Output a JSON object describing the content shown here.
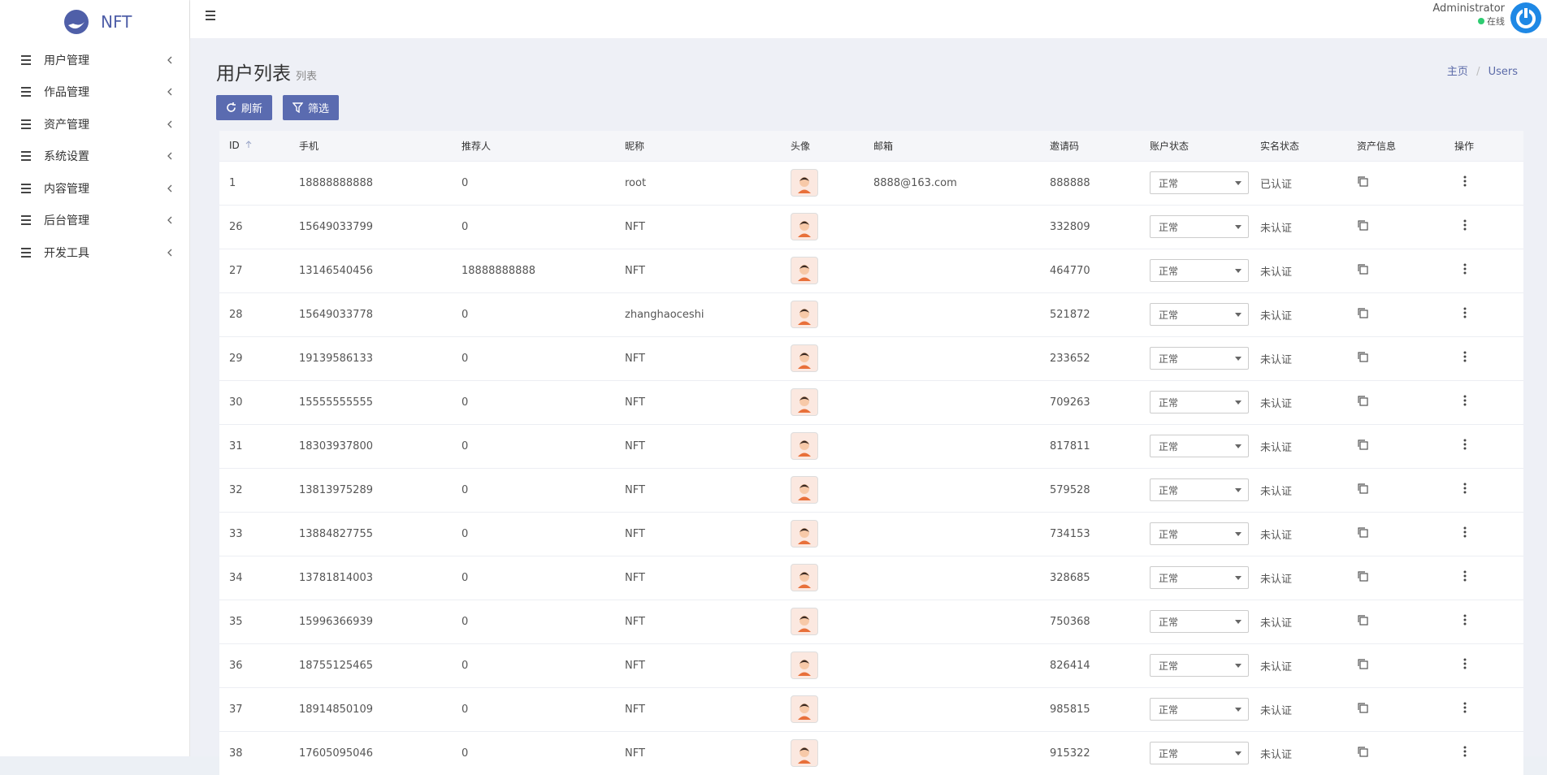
{
  "sidebar": {
    "logo": "NFT",
    "menu": [
      "用户管理",
      "作品管理",
      "资产管理",
      "系统设置",
      "内容管理",
      "后台管理",
      "开发工具"
    ]
  },
  "header": {
    "user": "Administrator",
    "status": "在线"
  },
  "page": {
    "title": "用户列表",
    "subtitle": "列表",
    "breadcrumb": [
      "主页",
      "Users"
    ]
  },
  "toolbar": [
    "刷新",
    "筛选"
  ],
  "table": {
    "columns": [
      "ID",
      "手机",
      "推荐人",
      "昵称",
      "头像",
      "邮箱",
      "邀请码",
      "账户状态",
      "实名状态",
      "资产信息",
      "操作"
    ],
    "rows": [
      {
        "id": "1",
        "phone": "18888888888",
        "referrer": "0",
        "nickname": "root",
        "email": "8888@163.com",
        "invite_code": "888888",
        "status": "正常",
        "verified": "已认证"
      },
      {
        "id": "26",
        "phone": "15649033799",
        "referrer": "0",
        "nickname": "NFT",
        "invite_code": "332809",
        "status": "正常",
        "verified": "未认证"
      },
      {
        "id": "27",
        "phone": "13146540456",
        "referrer": "18888888888",
        "nickname": "NFT",
        "invite_code": "464770",
        "status": "正常",
        "verified": "未认证"
      },
      {
        "id": "28",
        "phone": "15649033778",
        "referrer": "0",
        "nickname": "zhanghaoceshi",
        "invite_code": "521872",
        "status": "正常",
        "verified": "未认证"
      },
      {
        "id": "29",
        "phone": "19139586133",
        "referrer": "0",
        "nickname": "NFT",
        "invite_code": "233652",
        "status": "正常",
        "verified": "未认证"
      },
      {
        "id": "30",
        "phone": "15555555555",
        "referrer": "0",
        "nickname": "NFT",
        "invite_code": "709263",
        "status": "正常",
        "verified": "未认证"
      },
      {
        "id": "31",
        "phone": "18303937800",
        "referrer": "0",
        "nickname": "NFT",
        "invite_code": "817811",
        "status": "正常",
        "verified": "未认证"
      },
      {
        "id": "32",
        "phone": "13813975289",
        "referrer": "0",
        "nickname": "NFT",
        "invite_code": "579528",
        "status": "正常",
        "verified": "未认证"
      },
      {
        "id": "33",
        "phone": "13884827755",
        "referrer": "0",
        "nickname": "NFT",
        "invite_code": "734153",
        "status": "正常",
        "verified": "未认证"
      },
      {
        "id": "34",
        "phone": "13781814003",
        "referrer": "0",
        "nickname": "NFT",
        "invite_code": "328685",
        "status": "正常",
        "verified": "未认证"
      },
      {
        "id": "35",
        "phone": "15996366939",
        "referrer": "0",
        "nickname": "NFT",
        "invite_code": "750368",
        "status": "正常",
        "verified": "未认证"
      },
      {
        "id": "36",
        "phone": "18755125465",
        "referrer": "0",
        "nickname": "NFT",
        "invite_code": "826414",
        "status": "正常",
        "verified": "未认证"
      },
      {
        "id": "37",
        "phone": "18914850109",
        "referrer": "0",
        "nickname": "NFT",
        "invite_code": "985815",
        "status": "正常",
        "verified": "未认证"
      },
      {
        "id": "38",
        "phone": "17605095046",
        "referrer": "0",
        "nickname": "NFT",
        "invite_code": "915322",
        "status": "正常",
        "verified": "未认证"
      }
    ]
  }
}
